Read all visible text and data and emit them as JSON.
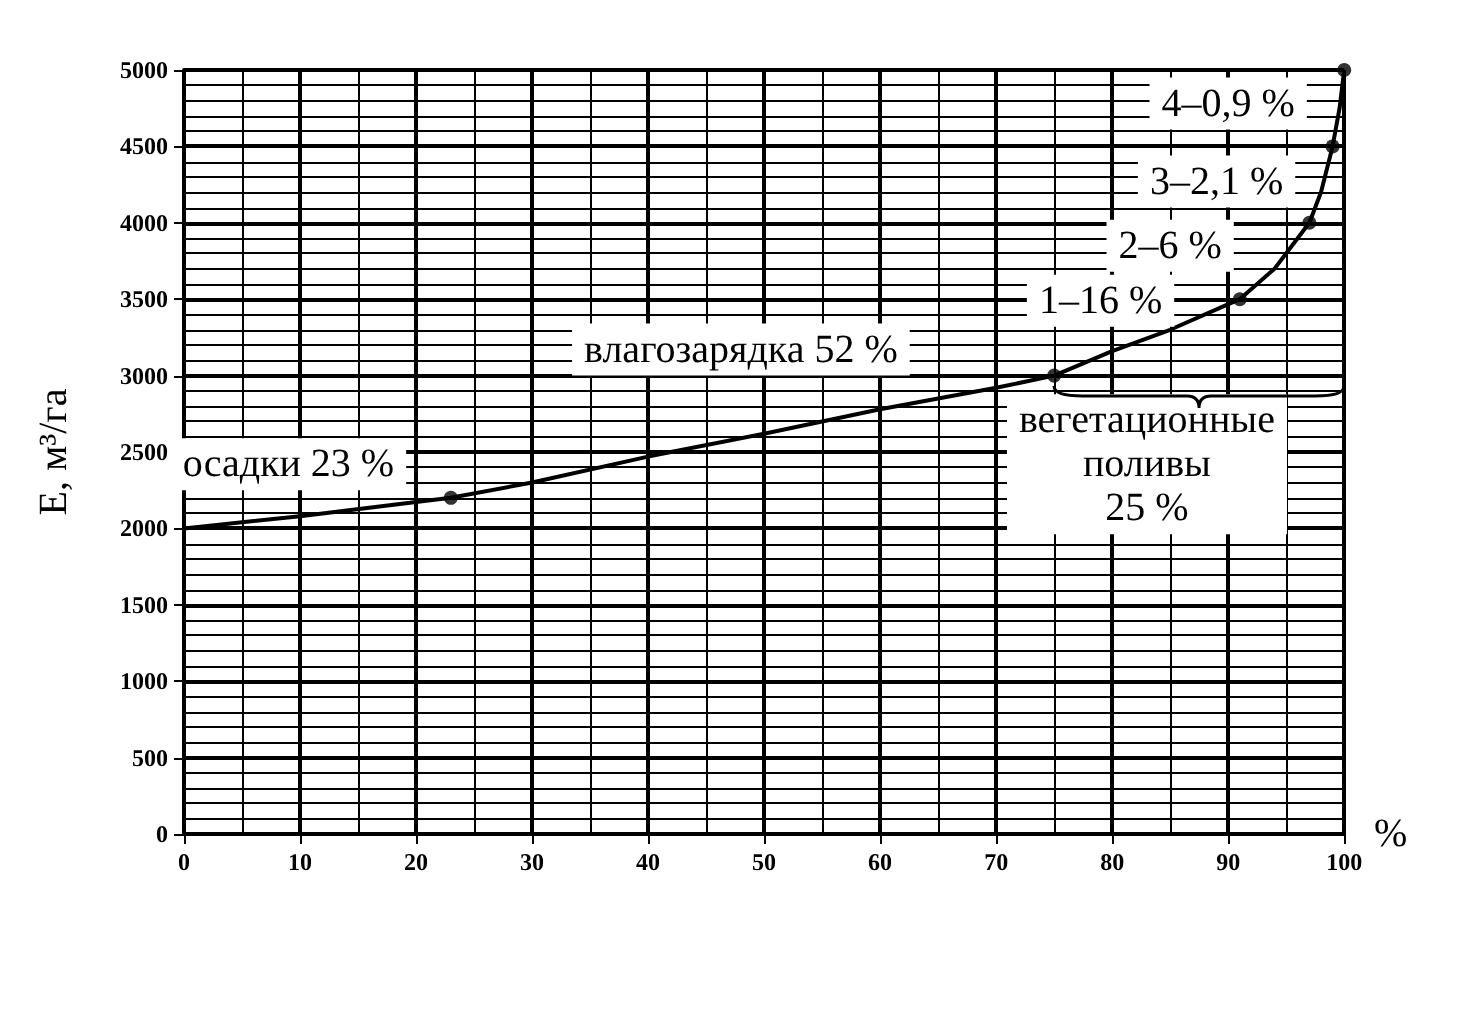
{
  "chart_data": {
    "type": "line",
    "xlabel": "%",
    "ylabel": "E, м³/га",
    "series": [
      {
        "color": "#000000",
        "marker": "none",
        "x": [
          0,
          10,
          23,
          30,
          40,
          50,
          60,
          70,
          75,
          80,
          85,
          91,
          94,
          97,
          98,
          99,
          99.6,
          100
        ],
        "values": [
          2000,
          2080,
          2200,
          2300,
          2470,
          2620,
          2780,
          2920,
          3000,
          3160,
          3300,
          3500,
          3700,
          4000,
          4200,
          4500,
          4750,
          5000
        ]
      },
      {
        "type": "scatter",
        "color": "#000000",
        "marker": "circle",
        "x": [
          23,
          75,
          91,
          97,
          99,
          100
        ],
        "values": [
          2200,
          3000,
          3500,
          4000,
          4500,
          5000
        ]
      }
    ],
    "xlim": [
      0,
      100
    ],
    "xticks": [
      0,
      10,
      20,
      30,
      40,
      50,
      60,
      70,
      80,
      90,
      100
    ],
    "ylim": [
      0,
      5000
    ],
    "yticks": [
      0,
      500,
      1000,
      1500,
      2000,
      2500,
      3000,
      3500,
      4000,
      4500,
      5000
    ],
    "grid": true,
    "annotations": [
      "осадки 23 %",
      "влагозарядка 52 %",
      "вегетационные\nполивы\n25 %",
      "1–16 %",
      "2–6 %",
      "3–2,1 %",
      "4–0,9 %"
    ]
  }
}
